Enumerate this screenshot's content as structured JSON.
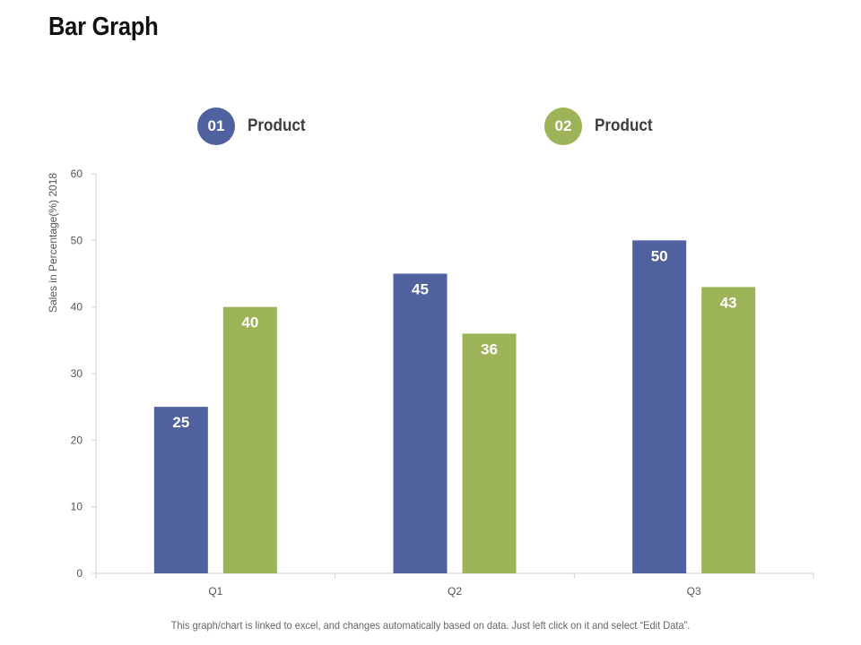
{
  "title": "Bar Graph",
  "legend": [
    {
      "badge": "01",
      "label": "Product",
      "color": "#4f629f"
    },
    {
      "badge": "02",
      "label": "Product",
      "color": "#9db358"
    }
  ],
  "chart_data": {
    "type": "bar",
    "title": "",
    "categories": [
      "Q1",
      "Q2",
      "Q3"
    ],
    "series": [
      {
        "name": "01 Product",
        "values": [
          25,
          45,
          50
        ],
        "color": "#4f629f"
      },
      {
        "name": "02 Product",
        "values": [
          40,
          36,
          43
        ],
        "color": "#9db358"
      }
    ],
    "xlabel": "",
    "ylabel": "Sales in Percentage(%) 2018",
    "ylim": [
      0,
      60
    ],
    "yticks": [
      0,
      10,
      20,
      30,
      40,
      50,
      60
    ],
    "grid": false,
    "legend_position": "top"
  },
  "footnote": "This graph/chart is linked to excel, and changes automatically based on data. Just left click on it and select “Edit Data”."
}
